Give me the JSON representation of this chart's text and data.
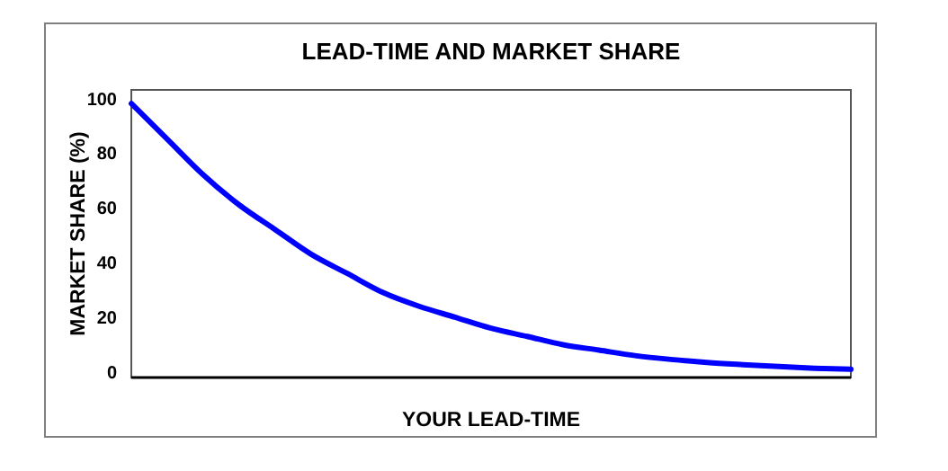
{
  "chart_data": {
    "type": "line",
    "title": "LEAD-TIME AND MARKET SHARE",
    "xlabel": "YOUR LEAD-TIME",
    "ylabel": "MARKET SHARE (%)",
    "categories": [
      null,
      null,
      null,
      null,
      null,
      null,
      null,
      null,
      null,
      null,
      null,
      null,
      null,
      null,
      null,
      null,
      null,
      null,
      null,
      null,
      null
    ],
    "series": [
      {
        "color": "#0000ff",
        "values": [
          100,
          87,
          74,
          63,
          54,
          45,
          38,
          31,
          26,
          22,
          18,
          15,
          12,
          10,
          8,
          6.6,
          5.5,
          4.7,
          4,
          3.4,
          3
        ]
      }
    ],
    "ylim": [
      0,
      105
    ],
    "yticks": [
      0,
      20,
      40,
      60,
      80,
      100
    ],
    "grid": false,
    "marker": "none",
    "line_style": "solid"
  }
}
